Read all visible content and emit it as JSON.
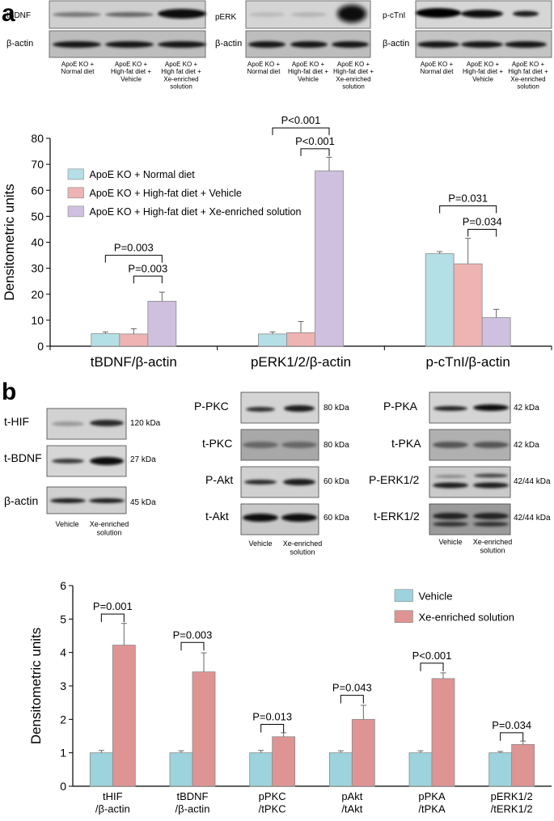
{
  "panel_a": {
    "letter": "a",
    "blots": [
      {
        "name": "tbdnf",
        "rows": [
          "tBDNF",
          "β-actin"
        ],
        "lanes": [
          "ApoE KO +\nNormal diet",
          "ApoE KO +\nHigh-fat diet +\nVehicle",
          "ApoE KO +\nHigh fat diet +\nXe-enriched\nsolution"
        ]
      },
      {
        "name": "perk",
        "rows": [
          "pERK",
          "β-actin"
        ],
        "lanes": [
          "ApoE KO +\nNormal diet",
          "ApoE KO +\nHigh-fat diet +\nVehicle",
          "ApoE KO +\nHigh-fat diet +\nXe-enriched\nsolution"
        ]
      },
      {
        "name": "pctni",
        "rows": [
          "p-cTnI",
          "β-actin"
        ],
        "lanes": [
          "ApoE KO +\nNormal diet",
          "ApoE KO +\nHigh-fat diet +\nVehicle",
          "ApoE KO +\nHigh fat diet +\nXe-enriched\nsolution"
        ]
      }
    ]
  },
  "panel_b": {
    "letter": "b",
    "blot_groups": [
      {
        "name": "hif-bdnf",
        "rows": [
          {
            "label": "t-HIF",
            "kda": "120 kDa"
          },
          {
            "label": "t-BDNF",
            "kda": "27 kDa"
          },
          {
            "label": "β-actin",
            "kda": "45 kDa"
          }
        ],
        "lanes": [
          "Vehicle",
          "Xe-enriched\nsolution"
        ]
      },
      {
        "name": "pkc-akt",
        "rows": [
          {
            "label": "P-PKC",
            "kda": "80 kDa"
          },
          {
            "label": "t-PKC",
            "kda": "80 kDa"
          },
          {
            "label": "P-Akt",
            "kda": "60 kDa"
          },
          {
            "label": "t-Akt",
            "kda": "60 kDa"
          }
        ],
        "lanes": [
          "Vehicle",
          "Xe-enriched\nsolution"
        ]
      },
      {
        "name": "pka-erk",
        "rows": [
          {
            "label": "P-PKA",
            "kda": "42 kDa"
          },
          {
            "label": "t-PKA",
            "kda": "42 kDa"
          },
          {
            "label": "P-ERK1/2",
            "kda": "42/44 kDa"
          },
          {
            "label": "t-ERK1/2",
            "kda": "42/44 kDa"
          }
        ],
        "lanes": [
          "Vehicle",
          "Xe-enriched\nsolution"
        ]
      }
    ]
  },
  "chart_data": [
    {
      "type": "bar",
      "title": "",
      "ylabel": "Densitometric units",
      "xlabel": "",
      "ylim": [
        0,
        80
      ],
      "yticks": [
        0,
        10,
        20,
        30,
        40,
        50,
        60,
        70,
        80
      ],
      "categories": [
        "tBDNF/β-actin",
        "pERK1/2/β-actin",
        "p-cTnI/β-actin"
      ],
      "series": [
        {
          "name": "ApoE KO + Normal diet",
          "color": "#b5dfe6",
          "values": [
            4.8,
            4.7,
            35.6
          ],
          "errors": [
            0.7,
            0.8,
            0.8
          ]
        },
        {
          "name": "ApoE KO + High-fat diet + Vehicle",
          "color": "#eeb3b3",
          "values": [
            4.7,
            5.2,
            31.7
          ],
          "errors": [
            2.0,
            4.3,
            9.8
          ]
        },
        {
          "name": "ApoE KO + High-fat diet + Xe-enriched solution",
          "color": "#cfc0df",
          "values": [
            17.3,
            67.5,
            11.0
          ],
          "errors": [
            3.5,
            5.2,
            3.2
          ]
        }
      ],
      "legend_position": "top-left",
      "annotations": [
        {
          "text": "P=0.003",
          "category": 0,
          "from": 0,
          "to": 2,
          "level": 35
        },
        {
          "text": "P=0.003",
          "category": 0,
          "from": 1,
          "to": 2,
          "level": 27
        },
        {
          "text": "P<0.001",
          "category": 1,
          "from": 0,
          "to": 2,
          "level": 84
        },
        {
          "text": "P<0.001",
          "category": 1,
          "from": 1,
          "to": 2,
          "level": 76
        },
        {
          "text": "P=0.031",
          "category": 2,
          "from": 0,
          "to": 2,
          "level": 54
        },
        {
          "text": "P=0.034",
          "category": 2,
          "from": 1,
          "to": 2,
          "level": 45
        }
      ]
    },
    {
      "type": "bar",
      "title": "",
      "ylabel": "Densitometric units",
      "xlabel": "",
      "ylim": [
        0,
        6
      ],
      "yticks": [
        0,
        1,
        2,
        3,
        4,
        5,
        6
      ],
      "categories": [
        "tHIF\n/β-actin",
        "tBDNF\n/β-actin",
        "pPKC\n/tPKC",
        "pAkt\n/tAkt",
        "pPKA\n/tPKA",
        "pERK1/2\n/tERK1/2"
      ],
      "series": [
        {
          "name": "Vehicle",
          "color": "#9dd3dc",
          "values": [
            1.0,
            1.0,
            1.0,
            1.0,
            1.0,
            1.0
          ],
          "errors": [
            0.07,
            0.06,
            0.07,
            0.06,
            0.06,
            0.04
          ]
        },
        {
          "name": "Xe-enriched solution",
          "color": "#df9494",
          "values": [
            4.22,
            3.42,
            1.48,
            2.0,
            3.22,
            1.25
          ],
          "errors": [
            0.65,
            0.57,
            0.12,
            0.42,
            0.17,
            0.1
          ]
        }
      ],
      "legend_position": "top-right",
      "annotations": [
        {
          "text": "P=0.001",
          "category": 0,
          "from": 0,
          "to": 1,
          "level": 5.15
        },
        {
          "text": "P=0.003",
          "category": 1,
          "from": 0,
          "to": 1,
          "level": 4.3
        },
        {
          "text": "P=0.013",
          "category": 2,
          "from": 0,
          "to": 1,
          "level": 1.85
        },
        {
          "text": "P=0.043",
          "category": 3,
          "from": 0,
          "to": 1,
          "level": 2.72
        },
        {
          "text": "P<0.001",
          "category": 4,
          "from": 0,
          "to": 1,
          "level": 3.68
        },
        {
          "text": "P=0.034",
          "category": 5,
          "from": 0,
          "to": 1,
          "level": 1.6
        }
      ]
    }
  ]
}
